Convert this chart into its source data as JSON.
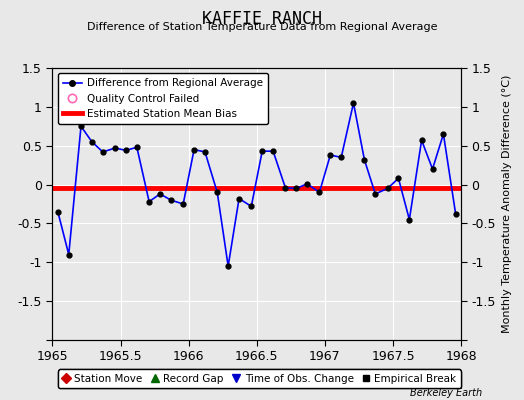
{
  "title": "KAFFIE RANCH",
  "subtitle": "Difference of Station Temperature Data from Regional Average",
  "ylabel_right": "Monthly Temperature Anomaly Difference (°C)",
  "background_color": "#e8e8e8",
  "plot_bg_color": "#e8e8e8",
  "xlim": [
    1965.0,
    1968.0
  ],
  "ylim": [
    -2.0,
    1.5
  ],
  "yticks": [
    -2.0,
    -1.5,
    -1.0,
    -0.5,
    0.0,
    0.5,
    1.0,
    1.5
  ],
  "xticks": [
    1965,
    1965.5,
    1966,
    1966.5,
    1967,
    1967.5,
    1968
  ],
  "xtick_labels": [
    "1965",
    "1965.5",
    "1966",
    "1966.5",
    "1967",
    "1967.5",
    "1968"
  ],
  "ytick_labels": [
    "",
    "-1.5",
    "-1",
    "-0.5",
    "0",
    "0.5",
    "1",
    "1.5"
  ],
  "mean_bias": -0.04,
  "credit": "Berkeley Earth",
  "x_data": [
    1965.04,
    1965.12,
    1965.21,
    1965.29,
    1965.37,
    1965.46,
    1965.54,
    1965.62,
    1965.71,
    1965.79,
    1965.87,
    1965.96,
    1966.04,
    1966.12,
    1966.21,
    1966.29,
    1966.37,
    1966.46,
    1966.54,
    1966.62,
    1966.71,
    1966.79,
    1966.87,
    1966.96,
    1967.04,
    1967.12,
    1967.21,
    1967.29,
    1967.37,
    1967.46,
    1967.54,
    1967.62,
    1967.71,
    1967.79,
    1967.87,
    1967.96
  ],
  "y_data": [
    -0.35,
    -0.9,
    0.75,
    0.55,
    0.42,
    0.47,
    0.44,
    0.48,
    -0.22,
    -0.12,
    -0.2,
    -0.25,
    0.45,
    0.42,
    -0.1,
    -1.05,
    -0.18,
    -0.28,
    0.43,
    0.43,
    -0.04,
    -0.05,
    0.01,
    -0.1,
    0.38,
    0.35,
    1.05,
    0.32,
    -0.12,
    -0.05,
    0.08,
    -0.45,
    0.57,
    0.2,
    0.65,
    -0.38
  ],
  "line_color": "#0000ff",
  "marker_color": "#000000",
  "bias_color": "#ff0000",
  "grid_color": "#ffffff",
  "legend1_items": [
    "Difference from Regional Average",
    "Quality Control Failed",
    "Estimated Station Mean Bias"
  ],
  "legend2_items": [
    "Station Move",
    "Record Gap",
    "Time of Obs. Change",
    "Empirical Break"
  ]
}
